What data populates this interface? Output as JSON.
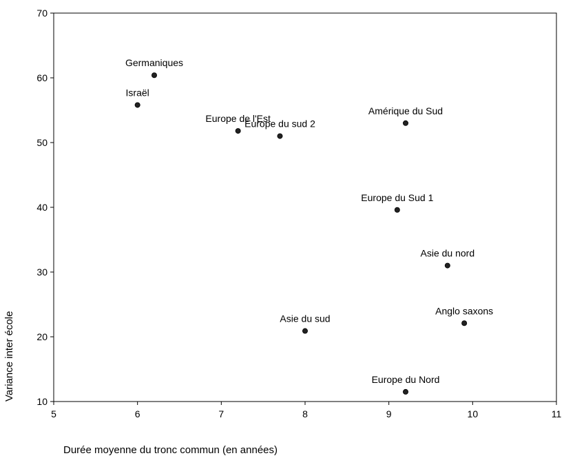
{
  "chart_data": {
    "type": "scatter",
    "title": "",
    "xlabel": "Durée moyenne du tronc commun (en années)",
    "ylabel": "Variance inter école",
    "xlim": [
      5,
      11
    ],
    "ylim": [
      10,
      70
    ],
    "xticks": [
      5,
      6,
      7,
      8,
      9,
      10,
      11
    ],
    "yticks": [
      10,
      20,
      30,
      40,
      50,
      60,
      70
    ],
    "grid": false,
    "legend": "none",
    "marker_color": "#222222",
    "points": [
      {
        "label": "Germaniques",
        "x": 6.2,
        "y": 60.4
      },
      {
        "label": "Israël",
        "x": 6.0,
        "y": 55.8
      },
      {
        "label": "Europe de l'Est",
        "x": 7.2,
        "y": 51.8
      },
      {
        "label": "Europe du sud 2",
        "x": 7.7,
        "y": 51.0
      },
      {
        "label": "Amérique du Sud",
        "x": 9.2,
        "y": 53.0
      },
      {
        "label": "Europe du Sud 1",
        "x": 9.1,
        "y": 39.6
      },
      {
        "label": "Asie du nord",
        "x": 9.7,
        "y": 31.0
      },
      {
        "label": "Asie du sud",
        "x": 8.0,
        "y": 20.9
      },
      {
        "label": "Anglo saxons",
        "x": 9.9,
        "y": 22.1
      },
      {
        "label": "Europe du Nord",
        "x": 9.2,
        "y": 11.5
      }
    ]
  }
}
